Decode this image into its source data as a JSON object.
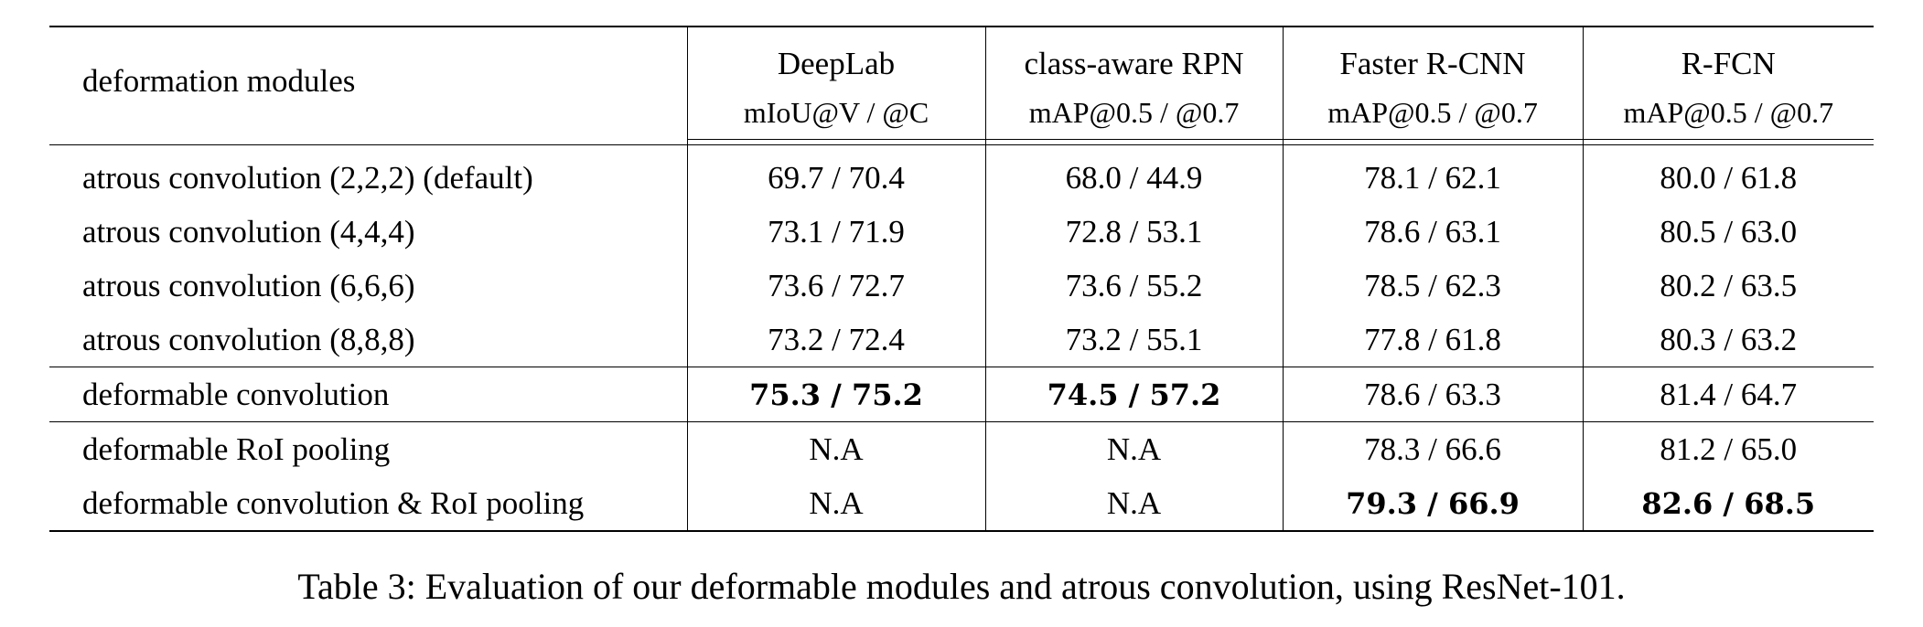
{
  "table": {
    "row_header": "deformation modules",
    "columns": [
      {
        "name": "DeepLab",
        "metric": "mIoU@V / @C"
      },
      {
        "name": "class-aware RPN",
        "metric": "mAP@0.5 / @0.7"
      },
      {
        "name": "Faster R-CNN",
        "metric": "mAP@0.5 / @0.7"
      },
      {
        "name": "R-FCN",
        "metric": "mAP@0.5 / @0.7"
      }
    ],
    "rows": [
      {
        "label": "atrous convolution (2,2,2) (default)",
        "cells": [
          "69.7 / 70.4",
          "68.0 / 44.9",
          "78.1 / 62.1",
          "80.0 / 61.8"
        ]
      },
      {
        "label": "atrous convolution (4,4,4)",
        "cells": [
          "73.1 / 71.9",
          "72.8 / 53.1",
          "78.6 / 63.1",
          "80.5 / 63.0"
        ]
      },
      {
        "label": "atrous convolution (6,6,6)",
        "cells": [
          "73.6 / 72.7",
          "73.6 / 55.2",
          "78.5 / 62.3",
          "80.2 / 63.5"
        ]
      },
      {
        "label": "atrous convolution (8,8,8)",
        "cells": [
          "73.2 / 72.4",
          "73.2 / 55.1",
          "77.8 / 61.8",
          "80.3 / 63.2"
        ]
      },
      {
        "label": "deformable convolution",
        "cells": [
          "75.3 / 75.2",
          "74.5 / 57.2",
          "78.6 / 63.3",
          "81.4 / 64.7"
        ]
      },
      {
        "label": "deformable RoI pooling",
        "cells": [
          "N.A",
          "N.A",
          "78.3 / 66.6",
          "81.2 / 65.0"
        ]
      },
      {
        "label": "deformable convolution & RoI pooling",
        "cells": [
          "N.A",
          "N.A",
          "79.3 / 66.9",
          "82.6 / 68.5"
        ]
      }
    ]
  },
  "caption": "Table 3: Evaluation of our deformable modules and atrous convolution, using ResNet-101."
}
